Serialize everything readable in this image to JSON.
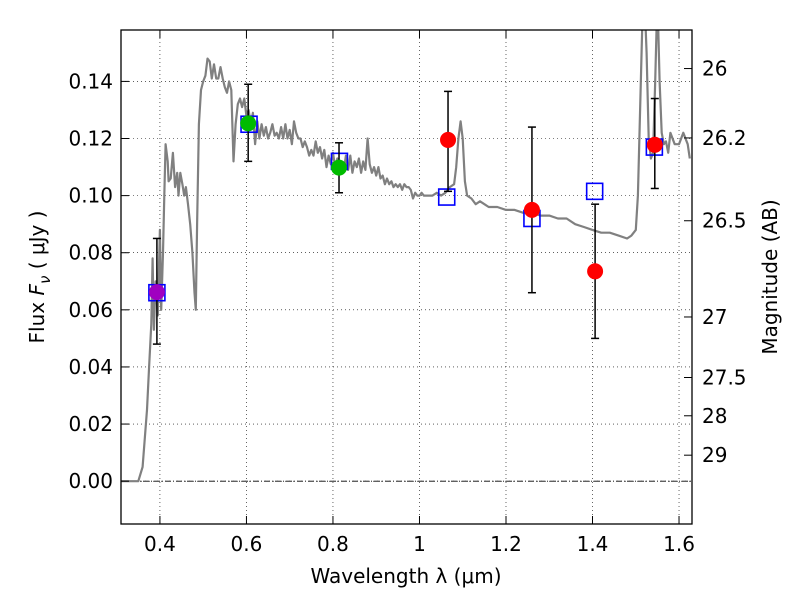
{
  "chart_data": {
    "type": "scatter",
    "title": "",
    "xlabel": "Wavelength  λ (μm)",
    "ylabel_prefix": "Flux ",
    "ylabel_symbol": "F",
    "ylabel_sub": "ν",
    "ylabel_units": " ( μJy )",
    "y2label": "Magnitude (AB)",
    "xlim": [
      0.31,
      1.63
    ],
    "ylim": [
      -0.015,
      0.158
    ],
    "grid": true,
    "x_ticks": [
      0.4,
      0.6,
      0.8,
      1.0,
      1.2,
      1.4,
      1.6
    ],
    "x_tick_labels": [
      "0.4",
      "0.6",
      "0.8",
      "1",
      "1.2",
      "1.4",
      "1.6"
    ],
    "y_ticks": [
      0.0,
      0.02,
      0.04,
      0.06,
      0.08,
      0.1,
      0.12,
      0.14
    ],
    "y_tick_labels": [
      "0.00",
      "0.02",
      "0.04",
      "0.06",
      "0.08",
      "0.10",
      "0.12",
      "0.14"
    ],
    "mag_ticks": [
      {
        "label": "26",
        "flux": 0.1445
      },
      {
        "label": "26.2",
        "flux": 0.1202
      },
      {
        "label": "26.5",
        "flux": 0.0912
      },
      {
        "label": "27",
        "flux": 0.0575
      },
      {
        "label": "27.5",
        "flux": 0.0363
      },
      {
        "label": "28",
        "flux": 0.0229
      },
      {
        "label": "29",
        "flux": 0.0091
      }
    ],
    "series": [
      {
        "name": "Model SED",
        "kind": "line",
        "color": "#808080",
        "points": [
          [
            0.31,
            0.0
          ],
          [
            0.35,
            0.0
          ],
          [
            0.36,
            0.005
          ],
          [
            0.37,
            0.025
          ],
          [
            0.375,
            0.04
          ],
          [
            0.38,
            0.055
          ],
          [
            0.383,
            0.078
          ],
          [
            0.386,
            0.053
          ],
          [
            0.39,
            0.07
          ],
          [
            0.395,
            0.058
          ],
          [
            0.4,
            0.088
          ],
          [
            0.403,
            0.06
          ],
          [
            0.407,
            0.08
          ],
          [
            0.41,
            0.1
          ],
          [
            0.413,
            0.118
          ],
          [
            0.418,
            0.112
          ],
          [
            0.42,
            0.105
          ],
          [
            0.425,
            0.106
          ],
          [
            0.43,
            0.115
          ],
          [
            0.435,
            0.103
          ],
          [
            0.44,
            0.108
          ],
          [
            0.443,
            0.1
          ],
          [
            0.447,
            0.108
          ],
          [
            0.452,
            0.104
          ],
          [
            0.456,
            0.1
          ],
          [
            0.46,
            0.103
          ],
          [
            0.465,
            0.097
          ],
          [
            0.47,
            0.09
          ],
          [
            0.475,
            0.08
          ],
          [
            0.48,
            0.066
          ],
          [
            0.483,
            0.06
          ],
          [
            0.486,
            0.09
          ],
          [
            0.49,
            0.125
          ],
          [
            0.495,
            0.137
          ],
          [
            0.5,
            0.14
          ],
          [
            0.505,
            0.142
          ],
          [
            0.51,
            0.148
          ],
          [
            0.515,
            0.147
          ],
          [
            0.52,
            0.141
          ],
          [
            0.525,
            0.146
          ],
          [
            0.53,
            0.141
          ],
          [
            0.535,
            0.141
          ],
          [
            0.54,
            0.145
          ],
          [
            0.545,
            0.141
          ],
          [
            0.55,
            0.138
          ],
          [
            0.555,
            0.136
          ],
          [
            0.56,
            0.14
          ],
          [
            0.565,
            0.137
          ],
          [
            0.57,
            0.112
          ],
          [
            0.575,
            0.125
          ],
          [
            0.58,
            0.132
          ],
          [
            0.585,
            0.134
          ],
          [
            0.59,
            0.131
          ],
          [
            0.595,
            0.134
          ],
          [
            0.6,
            0.128
          ],
          [
            0.605,
            0.13
          ],
          [
            0.61,
            0.125
          ],
          [
            0.615,
            0.129
          ],
          [
            0.62,
            0.118
          ],
          [
            0.625,
            0.126
          ],
          [
            0.63,
            0.12
          ],
          [
            0.635,
            0.125
          ],
          [
            0.64,
            0.121
          ],
          [
            0.645,
            0.124
          ],
          [
            0.65,
            0.12
          ],
          [
            0.655,
            0.122
          ],
          [
            0.66,
            0.125
          ],
          [
            0.665,
            0.121
          ],
          [
            0.67,
            0.122
          ],
          [
            0.675,
            0.12
          ],
          [
            0.68,
            0.124
          ],
          [
            0.685,
            0.12
          ],
          [
            0.69,
            0.125
          ],
          [
            0.695,
            0.12
          ],
          [
            0.7,
            0.123
          ],
          [
            0.705,
            0.118
          ],
          [
            0.71,
            0.126
          ],
          [
            0.715,
            0.122
          ],
          [
            0.72,
            0.12
          ],
          [
            0.725,
            0.12
          ],
          [
            0.73,
            0.117
          ],
          [
            0.735,
            0.119
          ],
          [
            0.74,
            0.117
          ],
          [
            0.745,
            0.114
          ],
          [
            0.75,
            0.116
          ],
          [
            0.755,
            0.114
          ],
          [
            0.76,
            0.119
          ],
          [
            0.765,
            0.115
          ],
          [
            0.77,
            0.117
          ],
          [
            0.775,
            0.113
          ],
          [
            0.78,
            0.116
          ],
          [
            0.785,
            0.11
          ],
          [
            0.79,
            0.114
          ],
          [
            0.795,
            0.111
          ],
          [
            0.8,
            0.115
          ],
          [
            0.805,
            0.11
          ],
          [
            0.81,
            0.113
          ],
          [
            0.815,
            0.112
          ],
          [
            0.82,
            0.111
          ],
          [
            0.825,
            0.109
          ],
          [
            0.83,
            0.114
          ],
          [
            0.835,
            0.109
          ],
          [
            0.84,
            0.114
          ],
          [
            0.845,
            0.108
          ],
          [
            0.85,
            0.112
          ],
          [
            0.855,
            0.11
          ],
          [
            0.86,
            0.113
          ],
          [
            0.865,
            0.108
          ],
          [
            0.87,
            0.112
          ],
          [
            0.875,
            0.109
          ],
          [
            0.88,
            0.12
          ],
          [
            0.885,
            0.111
          ],
          [
            0.89,
            0.108
          ],
          [
            0.895,
            0.11
          ],
          [
            0.9,
            0.107
          ],
          [
            0.905,
            0.11
          ],
          [
            0.91,
            0.106
          ],
          [
            0.915,
            0.107
          ],
          [
            0.92,
            0.104
          ],
          [
            0.925,
            0.106
          ],
          [
            0.93,
            0.104
          ],
          [
            0.935,
            0.105
          ],
          [
            0.94,
            0.103
          ],
          [
            0.945,
            0.104
          ],
          [
            0.95,
            0.103
          ],
          [
            0.955,
            0.104
          ],
          [
            0.96,
            0.102
          ],
          [
            0.965,
            0.104
          ],
          [
            0.97,
            0.103
          ],
          [
            0.975,
            0.103
          ],
          [
            0.98,
            0.102
          ],
          [
            0.985,
            0.099
          ],
          [
            0.99,
            0.101
          ],
          [
            0.995,
            0.1
          ],
          [
            1.0,
            0.1
          ],
          [
            1.005,
            0.101
          ],
          [
            1.01,
            0.1
          ],
          [
            1.02,
            0.1
          ],
          [
            1.03,
            0.1
          ],
          [
            1.04,
            0.101
          ],
          [
            1.05,
            0.1
          ],
          [
            1.06,
            0.101
          ],
          [
            1.07,
            0.103
          ],
          [
            1.08,
            0.104
          ],
          [
            1.085,
            0.11
          ],
          [
            1.09,
            0.12
          ],
          [
            1.095,
            0.126
          ],
          [
            1.1,
            0.12
          ],
          [
            1.105,
            0.105
          ],
          [
            1.11,
            0.1
          ],
          [
            1.12,
            0.099
          ],
          [
            1.13,
            0.097
          ],
          [
            1.14,
            0.098
          ],
          [
            1.15,
            0.097
          ],
          [
            1.16,
            0.096
          ],
          [
            1.18,
            0.096
          ],
          [
            1.2,
            0.095
          ],
          [
            1.22,
            0.095
          ],
          [
            1.24,
            0.094
          ],
          [
            1.26,
            0.094
          ],
          [
            1.28,
            0.093
          ],
          [
            1.3,
            0.093
          ],
          [
            1.32,
            0.092
          ],
          [
            1.34,
            0.092
          ],
          [
            1.36,
            0.09
          ],
          [
            1.38,
            0.089
          ],
          [
            1.4,
            0.088
          ],
          [
            1.42,
            0.087
          ],
          [
            1.44,
            0.087
          ],
          [
            1.46,
            0.086
          ],
          [
            1.48,
            0.085
          ],
          [
            1.49,
            0.086
          ],
          [
            1.5,
            0.088
          ],
          [
            1.505,
            0.1
          ],
          [
            1.51,
            0.13
          ],
          [
            1.515,
            0.16
          ],
          [
            1.52,
            0.17
          ],
          [
            1.525,
            0.15
          ],
          [
            1.53,
            0.12
          ],
          [
            1.535,
            0.113
          ],
          [
            1.54,
            0.115
          ],
          [
            1.545,
            0.14
          ],
          [
            1.55,
            0.17
          ],
          [
            1.555,
            0.14
          ],
          [
            1.56,
            0.122
          ],
          [
            1.565,
            0.118
          ],
          [
            1.57,
            0.119
          ],
          [
            1.575,
            0.115
          ],
          [
            1.58,
            0.122
          ],
          [
            1.59,
            0.118
          ],
          [
            1.6,
            0.118
          ],
          [
            1.61,
            0.122
          ],
          [
            1.62,
            0.118
          ],
          [
            1.625,
            0.113
          ]
        ]
      },
      {
        "name": "Model photometry",
        "kind": "open-square",
        "color": "#0000ff",
        "points": [
          [
            0.393,
            0.066
          ],
          [
            0.606,
            0.125
          ],
          [
            0.815,
            0.112
          ],
          [
            1.063,
            0.0995
          ],
          [
            1.26,
            0.092
          ],
          [
            1.405,
            0.1015
          ],
          [
            1.543,
            0.117
          ]
        ]
      },
      {
        "name": "Observed (red)",
        "kind": "filled-circle",
        "color": "#ff0000",
        "points": [
          {
            "x": 1.066,
            "y": 0.1195,
            "lo": 0.1015,
            "hi": 0.1365
          },
          {
            "x": 1.26,
            "y": 0.095,
            "lo": 0.066,
            "hi": 0.124
          },
          {
            "x": 1.406,
            "y": 0.0735,
            "lo": 0.05,
            "hi": 0.097
          },
          {
            "x": 1.544,
            "y": 0.1178,
            "lo": 0.1025,
            "hi": 0.134
          }
        ]
      },
      {
        "name": "Observed (green)",
        "kind": "filled-circle",
        "color": "#00bb00",
        "points": [
          {
            "x": 0.604,
            "y": 0.1253,
            "lo": 0.112,
            "hi": 0.139
          },
          {
            "x": 0.814,
            "y": 0.1098,
            "lo": 0.101,
            "hi": 0.1185
          }
        ]
      },
      {
        "name": "Observed (magenta)",
        "kind": "filled-circle",
        "color": "#a000c0",
        "points": [
          {
            "x": 0.393,
            "y": 0.0662,
            "lo": 0.048,
            "hi": 0.085
          }
        ]
      }
    ]
  }
}
